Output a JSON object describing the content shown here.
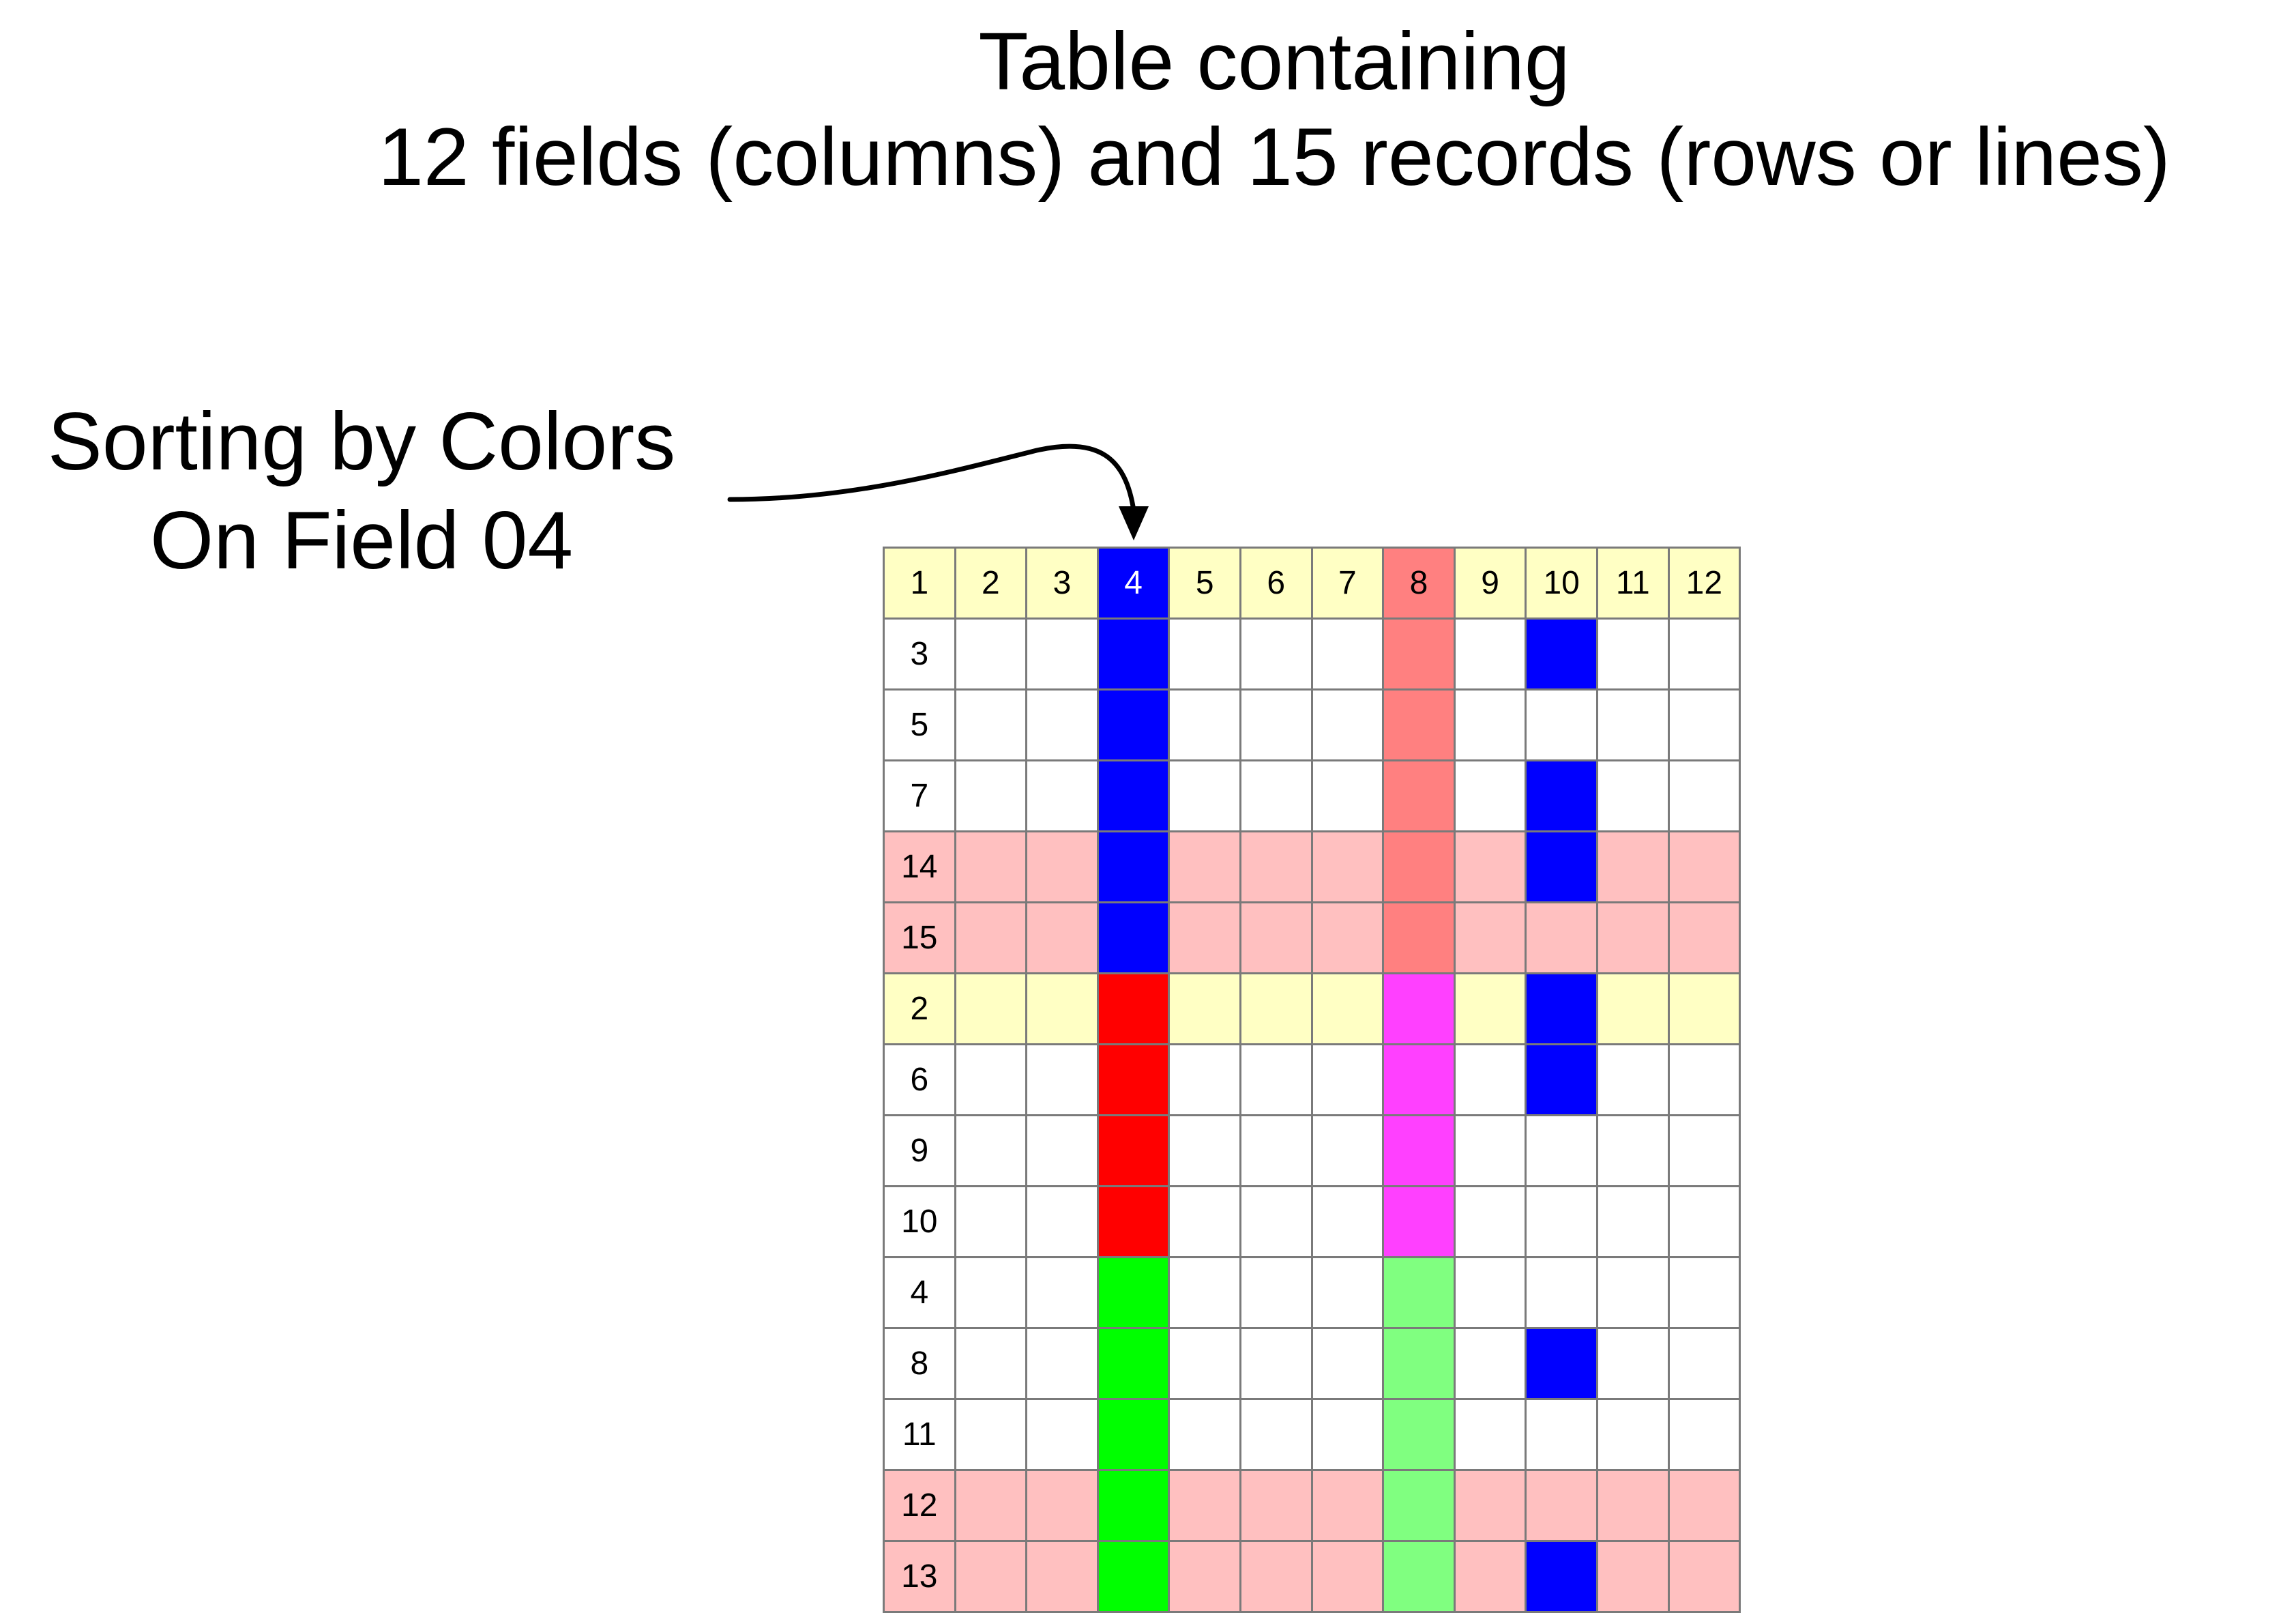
{
  "title": {
    "line1": "Table containing",
    "line2": "12 fields (columns) and 15 records (rows or lines)"
  },
  "annotation": {
    "line1": "Sorting by Colors",
    "line2": "On Field 04"
  },
  "colors": {
    "white": "#ffffff",
    "yellow": "#ffffc4",
    "pink": "#ffc0c0",
    "blue": "#0000ff",
    "red": "#ff0000",
    "green": "#00ff00",
    "salmon": "#ff8080",
    "magenta": "#ff40ff",
    "lightgreen": "#80ff80",
    "header_text": "#000000",
    "header_text_on_blue": "#ffffff",
    "grid_line": "#7a7a7a"
  },
  "table": {
    "headers": [
      "1",
      "2",
      "3",
      "4",
      "5",
      "6",
      "7",
      "8",
      "9",
      "10",
      "11",
      "12"
    ],
    "header_colors": [
      "yellow",
      "yellow",
      "yellow",
      "blue",
      "yellow",
      "yellow",
      "yellow",
      "salmon",
      "yellow",
      "yellow",
      "yellow",
      "yellow"
    ],
    "rows": [
      {
        "label": "3",
        "row_color": "white",
        "field4": "blue",
        "field8": "salmon",
        "field10": "blue"
      },
      {
        "label": "5",
        "row_color": "white",
        "field4": "blue",
        "field8": "salmon",
        "field10": null
      },
      {
        "label": "7",
        "row_color": "white",
        "field4": "blue",
        "field8": "salmon",
        "field10": "blue"
      },
      {
        "label": "14",
        "row_color": "pink",
        "field4": "blue",
        "field8": "salmon",
        "field10": "blue"
      },
      {
        "label": "15",
        "row_color": "pink",
        "field4": "blue",
        "field8": "salmon",
        "field10": null
      },
      {
        "label": "2",
        "row_color": "yellow",
        "field4": "red",
        "field8": "magenta",
        "field10": "blue"
      },
      {
        "label": "6",
        "row_color": "white",
        "field4": "red",
        "field8": "magenta",
        "field10": "blue"
      },
      {
        "label": "9",
        "row_color": "white",
        "field4": "red",
        "field8": "magenta",
        "field10": null
      },
      {
        "label": "10",
        "row_color": "white",
        "field4": "red",
        "field8": "magenta",
        "field10": null
      },
      {
        "label": "4",
        "row_color": "white",
        "field4": "green",
        "field8": "lightgreen",
        "field10": null
      },
      {
        "label": "8",
        "row_color": "white",
        "field4": "green",
        "field8": "lightgreen",
        "field10": "blue"
      },
      {
        "label": "11",
        "row_color": "white",
        "field4": "green",
        "field8": "lightgreen",
        "field10": null
      },
      {
        "label": "12",
        "row_color": "pink",
        "field4": "green",
        "field8": "lightgreen",
        "field10": null
      },
      {
        "label": "13",
        "row_color": "pink",
        "field4": "green",
        "field8": "lightgreen",
        "field10": "blue"
      }
    ]
  }
}
